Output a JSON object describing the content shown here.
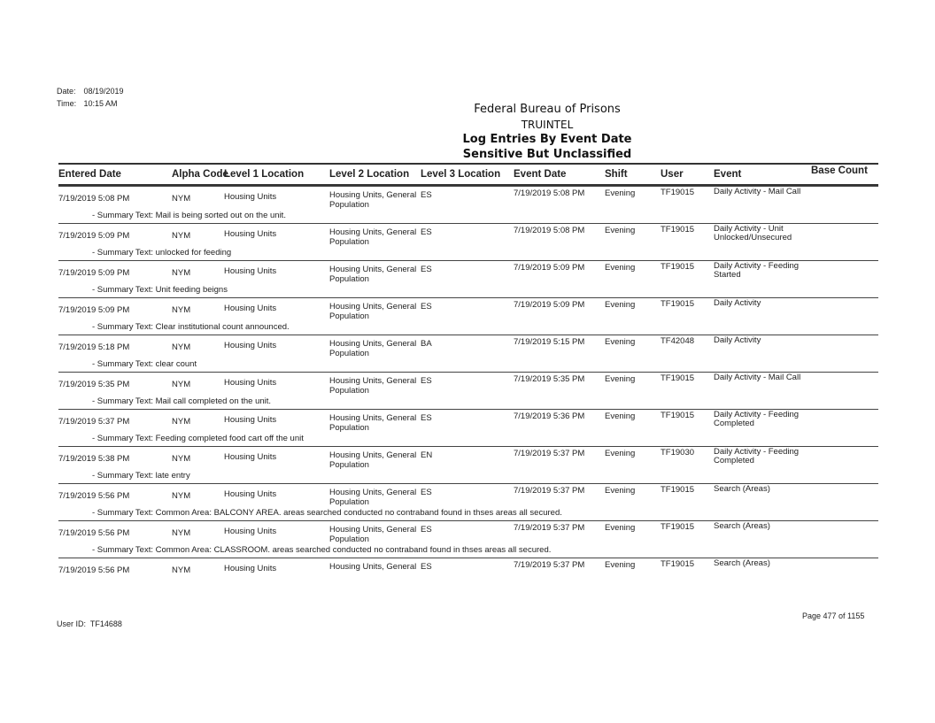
{
  "meta": {
    "date_label": "Date:",
    "date": "08/19/2019",
    "time_label": "Time:",
    "time": "10:15 AM"
  },
  "header": {
    "agency": "Federal Bureau of Prisons",
    "system": "TRUINTEL",
    "report": "Log Entries By Event Date",
    "classification": "Sensitive But Unclassified"
  },
  "columns": [
    "Entered Date",
    "Alpha Code",
    "Level 1 Location",
    "Level 2 Location",
    "Level 3 Location",
    "Event Date",
    "Shift",
    "User",
    "Event",
    "Base Count"
  ],
  "rows": [
    {
      "entered": "7/19/2019 5:08 PM",
      "alpha": "NYM",
      "l1": "Housing Units",
      "l2a": "Housing Units, General",
      "l2b": "Population",
      "l3": "ES",
      "event_date": "7/19/2019 5:08 PM",
      "shift": "Evening",
      "user": "TF19015",
      "eventa": "Daily Activity - Mail Call",
      "eventb": "",
      "summary": "- Summary Text: Mail is being sorted out on the unit."
    },
    {
      "entered": "7/19/2019 5:09 PM",
      "alpha": "NYM",
      "l1": "Housing Units",
      "l2a": "Housing Units, General",
      "l2b": "Population",
      "l3": "ES",
      "event_date": "7/19/2019 5:08 PM",
      "shift": "Evening",
      "user": "TF19015",
      "eventa": "Daily Activity - Unit",
      "eventb": "Unlocked/Unsecured",
      "summary": "- Summary Text: unlocked for feeding"
    },
    {
      "entered": "7/19/2019 5:09 PM",
      "alpha": "NYM",
      "l1": "Housing Units",
      "l2a": "Housing Units, General",
      "l2b": "Population",
      "l3": "ES",
      "event_date": "7/19/2019 5:09 PM",
      "shift": "Evening",
      "user": "TF19015",
      "eventa": "Daily Activity - Feeding",
      "eventb": "Started",
      "summary": "- Summary Text: Unit feeding beigns"
    },
    {
      "entered": "7/19/2019 5:09 PM",
      "alpha": "NYM",
      "l1": "Housing Units",
      "l2a": "Housing Units, General",
      "l2b": "Population",
      "l3": "ES",
      "event_date": "7/19/2019 5:09 PM",
      "shift": "Evening",
      "user": "TF19015",
      "eventa": "Daily Activity",
      "eventb": "",
      "summary": "- Summary Text: Clear institutional count announced."
    },
    {
      "entered": "7/19/2019 5:18 PM",
      "alpha": "NYM",
      "l1": "Housing Units",
      "l2a": "Housing Units, General",
      "l2b": "Population",
      "l3": "BA",
      "event_date": "7/19/2019 5:15 PM",
      "shift": "Evening",
      "user": "TF42048",
      "eventa": "Daily Activity",
      "eventb": "",
      "summary": "- Summary Text: clear count"
    },
    {
      "entered": "7/19/2019 5:35 PM",
      "alpha": "NYM",
      "l1": "Housing Units",
      "l2a": "Housing Units, General",
      "l2b": "Population",
      "l3": "ES",
      "event_date": "7/19/2019 5:35 PM",
      "shift": "Evening",
      "user": "TF19015",
      "eventa": "Daily Activity - Mail Call",
      "eventb": "",
      "summary": "- Summary Text: Mail call completed on the unit."
    },
    {
      "entered": "7/19/2019 5:37 PM",
      "alpha": "NYM",
      "l1": "Housing Units",
      "l2a": "Housing Units, General",
      "l2b": "Population",
      "l3": "ES",
      "event_date": "7/19/2019 5:36 PM",
      "shift": "Evening",
      "user": "TF19015",
      "eventa": "Daily Activity - Feeding",
      "eventb": "Completed",
      "summary": "- Summary Text: Feeding completed food cart off the unit"
    },
    {
      "entered": "7/19/2019 5:38 PM",
      "alpha": "NYM",
      "l1": "Housing Units",
      "l2a": "Housing Units, General",
      "l2b": "Population",
      "l3": "EN",
      "event_date": "7/19/2019 5:37 PM",
      "shift": "Evening",
      "user": "TF19030",
      "eventa": "Daily Activity - Feeding",
      "eventb": "Completed",
      "summary": "- Summary Text: late entry"
    },
    {
      "entered": "7/19/2019 5:56 PM",
      "alpha": "NYM",
      "l1": "Housing Units",
      "l2a": "Housing Units, General",
      "l2b": "Population",
      "l3": "ES",
      "event_date": "7/19/2019 5:37 PM",
      "shift": "Evening",
      "user": "TF19015",
      "eventa": "Search (Areas)",
      "eventb": "",
      "summary": "- Summary Text: Common Area: BALCONY AREA.  areas searched conducted no contraband found in thses areas all secured."
    },
    {
      "entered": "7/19/2019 5:56 PM",
      "alpha": "NYM",
      "l1": "Housing Units",
      "l2a": "Housing Units, General",
      "l2b": "Population",
      "l3": "ES",
      "event_date": "7/19/2019 5:37 PM",
      "shift": "Evening",
      "user": "TF19015",
      "eventa": "Search (Areas)",
      "eventb": "",
      "summary": "- Summary Text: Common Area: CLASSROOM.  areas searched conducted no contraband found in thses areas all secured."
    },
    {
      "entered": "7/19/2019 5:56 PM",
      "alpha": "NYM",
      "l1": "Housing Units",
      "l2a": "Housing Units, General",
      "l2b": "",
      "l3": "ES",
      "event_date": "7/19/2019 5:37 PM",
      "shift": "Evening",
      "user": "TF19015",
      "eventa": "Search (Areas)",
      "eventb": "",
      "summary": ""
    }
  ],
  "footer": {
    "user_label": "User ID:",
    "user_id": "TF14688",
    "page": "Page 477 of 1155"
  }
}
